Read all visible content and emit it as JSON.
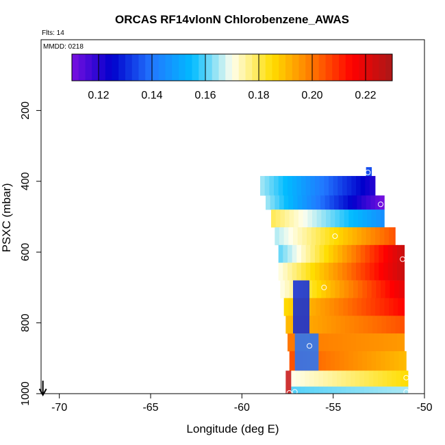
{
  "chart_data": {
    "type": "heatmap",
    "title": "ORCAS RF14vlonN Chlorobenzene_AWAS",
    "flts_label": "Flts: 14",
    "mmdd_label": "MMDD: 0218",
    "xlabel": "Longitude (deg E)",
    "ylabel": "PSXC (mbar)",
    "xlim": [
      -71,
      -50
    ],
    "ylim": [
      1000,
      0
    ],
    "x_ticks": [
      -70,
      -65,
      -60,
      -55,
      -50
    ],
    "y_ticks": [
      200,
      400,
      600,
      800,
      1000
    ],
    "colorbar": {
      "range": [
        0.11,
        0.23
      ],
      "ticks": [
        0.12,
        0.14,
        0.16,
        0.18,
        0.2,
        0.22
      ],
      "tick_labels": [
        "0.12",
        "0.14",
        "0.16",
        "0.18",
        "0.20",
        "0.22"
      ],
      "colors": [
        "#7a10e0",
        "#0000cc",
        "#2277ff",
        "#00bbff",
        "#ffffee",
        "#ffdd00",
        "#ff7700",
        "#ff0000",
        "#aa1818"
      ]
    },
    "bands": [
      {
        "p_top": 360,
        "p_bot": 385,
        "lon_start": -53.2,
        "lon_end": -52.9,
        "v_start": 0.135,
        "v_end": 0.135
      },
      {
        "p_top": 385,
        "p_bot": 440,
        "lon_start": -59.0,
        "lon_end": -52.7,
        "v_start": 0.165,
        "v_end": 0.12
      },
      {
        "p_top": 440,
        "p_bot": 480,
        "lon_start": -58.7,
        "lon_end": -52.2,
        "v_start": 0.165,
        "v_end": 0.11
      },
      {
        "p_top": 480,
        "p_bot": 530,
        "lon_start": -58.4,
        "lon_end": -52.2,
        "v_start": 0.18,
        "v_end": 0.145
      },
      {
        "p_top": 530,
        "p_bot": 580,
        "lon_start": -58.2,
        "lon_end": -51.6,
        "v_start": 0.165,
        "v_end": 0.205
      },
      {
        "p_top": 580,
        "p_bot": 630,
        "lon_start": -58.0,
        "lon_end": -51.1,
        "v_start": 0.16,
        "v_end": 0.225
      },
      {
        "p_top": 630,
        "p_bot": 680,
        "lon_start": -58.0,
        "lon_end": -51.1,
        "v_start": 0.17,
        "v_end": 0.225
      },
      {
        "p_top": 680,
        "p_bot": 730,
        "lon_start": -57.9,
        "lon_end": -51.1,
        "v_start": 0.17,
        "v_end": 0.22
      },
      {
        "p_top": 730,
        "p_bot": 780,
        "lon_start": -57.7,
        "lon_end": -51.1,
        "v_start": 0.185,
        "v_end": 0.215
      },
      {
        "p_top": 780,
        "p_bot": 830,
        "lon_start": -57.6,
        "lon_end": -51.1,
        "v_start": 0.19,
        "v_end": 0.205
      },
      {
        "p_top": 830,
        "p_bot": 880,
        "lon_start": -57.5,
        "lon_end": -51.1,
        "v_start": 0.2,
        "v_end": 0.195
      },
      {
        "p_top": 880,
        "p_bot": 935,
        "lon_start": -57.4,
        "lon_end": -51.0,
        "v_start": 0.205,
        "v_end": 0.19
      },
      {
        "p_top": 935,
        "p_bot": 980,
        "lon_start": -57.3,
        "lon_end": -50.9,
        "v_start": 0.17,
        "v_end": 0.185
      },
      {
        "p_top": 980,
        "p_bot": 1000,
        "lon_start": -57.3,
        "lon_end": -50.9,
        "v_start": 0.16,
        "v_end": 0.165
      }
    ],
    "anomalies": [
      {
        "p_top": 680,
        "p_bot": 830,
        "lon_start": -57.2,
        "lon_end": -56.3,
        "value": 0.13
      },
      {
        "p_top": 830,
        "p_bot": 935,
        "lon_start": -57.1,
        "lon_end": -55.8,
        "value": 0.14
      },
      {
        "p_top": 935,
        "p_bot": 1000,
        "lon_start": -57.6,
        "lon_end": -57.3,
        "value": 0.225
      }
    ],
    "sample_points": [
      {
        "lon": -53.1,
        "p": 375
      },
      {
        "lon": -52.4,
        "p": 465
      },
      {
        "lon": -54.9,
        "p": 555
      },
      {
        "lon": -51.2,
        "p": 620
      },
      {
        "lon": -55.5,
        "p": 700
      },
      {
        "lon": -56.3,
        "p": 865
      },
      {
        "lon": -51.0,
        "p": 955
      },
      {
        "lon": -51.0,
        "p": 995
      },
      {
        "lon": -57.4,
        "p": 998
      },
      {
        "lon": -57.1,
        "p": 995
      }
    ],
    "arrow_lon": -70.9
  }
}
